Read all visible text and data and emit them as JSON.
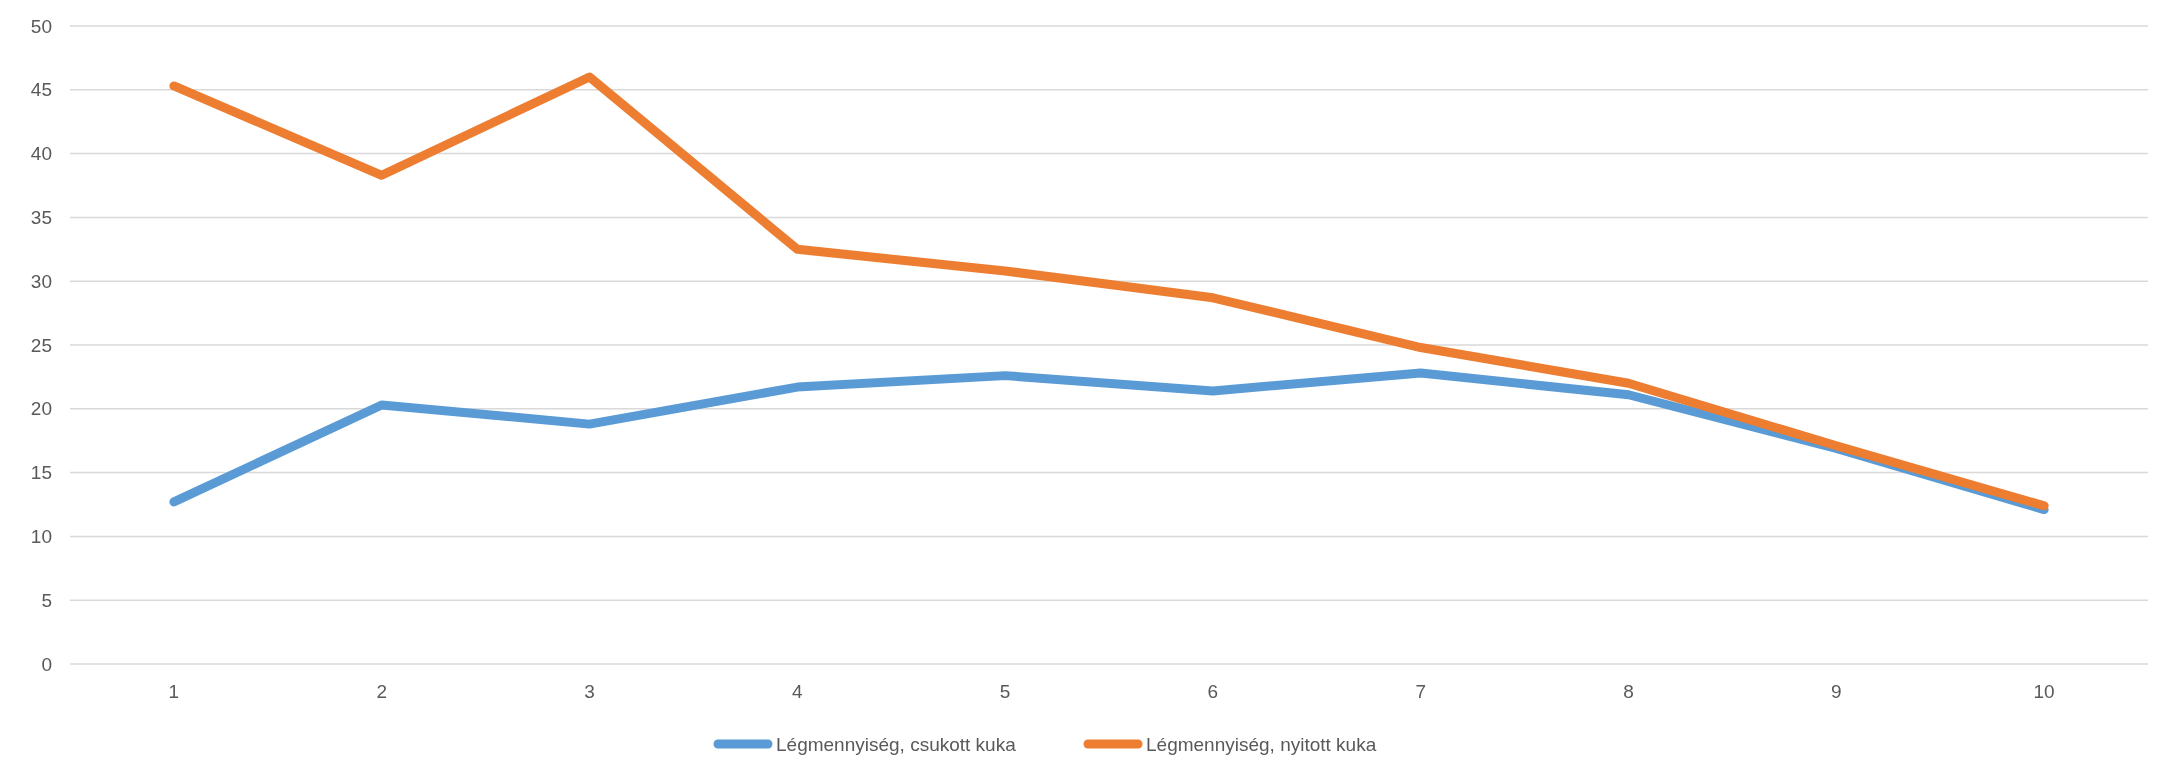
{
  "chart_data": {
    "type": "line",
    "categories": [
      "1",
      "2",
      "3",
      "4",
      "5",
      "6",
      "7",
      "8",
      "9",
      "10"
    ],
    "series": [
      {
        "name": "Légmennyiség, csukott kuka",
        "color": "#5b9bd5",
        "values": [
          12.7,
          20.3,
          18.8,
          21.7,
          22.6,
          21.4,
          22.8,
          21.1,
          16.9,
          12.1
        ]
      },
      {
        "name": "Légmennyiség, nyitott kuka",
        "color": "#ed7d31",
        "values": [
          45.3,
          38.3,
          46.0,
          32.5,
          30.8,
          28.7,
          24.8,
          22.0,
          17.1,
          12.4
        ]
      }
    ],
    "ylim": [
      0,
      50
    ],
    "yticks": [
      0,
      5,
      10,
      15,
      20,
      25,
      30,
      35,
      40,
      45,
      50
    ],
    "grid": "y",
    "legend": "bottom",
    "marker": "none",
    "line_style": "solid"
  }
}
